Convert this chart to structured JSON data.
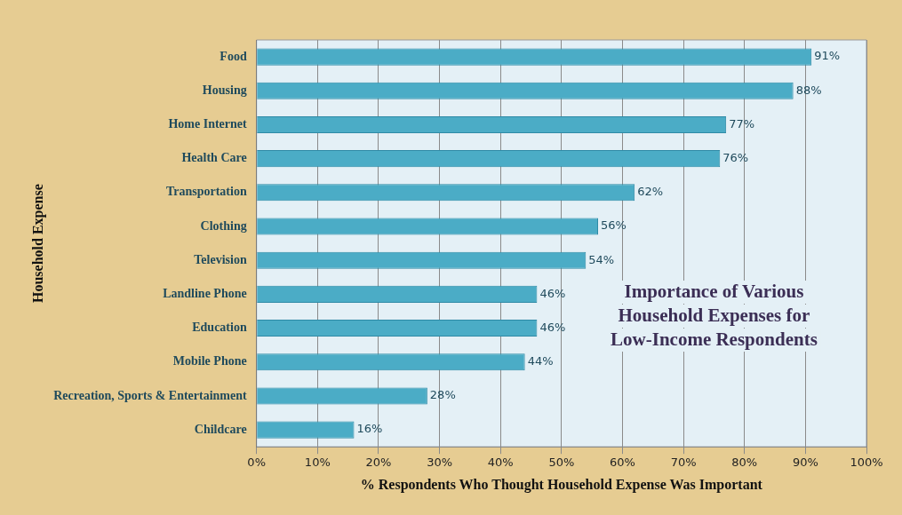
{
  "chart_data": {
    "type": "bar",
    "orientation": "horizontal",
    "title": "Importance of Various Household Expenses for Low-Income Respondents",
    "xlabel": "% Respondents Who Thought Household Expense Was Important",
    "ylabel": "Household Expense",
    "categories": [
      "Food",
      "Housing",
      "Home Internet",
      "Health Care",
      "Transportation",
      "Clothing",
      "Television",
      "Landline Phone",
      "Education",
      "Mobile Phone",
      "Recreation, Sports & Entertainment",
      "Childcare"
    ],
    "values": [
      91,
      88,
      77,
      76,
      62,
      56,
      54,
      46,
      46,
      44,
      28,
      16
    ],
    "value_labels": [
      "91%",
      "88%",
      "77%",
      "76%",
      "62%",
      "56%",
      "54%",
      "46%",
      "46%",
      "44%",
      "28%",
      "16%"
    ],
    "color": "#4bacc6",
    "xlim": [
      0,
      100
    ],
    "xticks": [
      {
        "value": 0,
        "label": "0%"
      },
      {
        "value": 10,
        "label": "10%"
      },
      {
        "value": 20,
        "label": "20%"
      },
      {
        "value": 30,
        "label": "30%"
      },
      {
        "value": 40,
        "label": "40%"
      },
      {
        "value": 50,
        "label": "50%"
      },
      {
        "value": 60,
        "label": "60%"
      },
      {
        "value": 70,
        "label": "70%"
      },
      {
        "value": 80,
        "label": "80%"
      },
      {
        "value": 90,
        "label": "90%"
      },
      {
        "value": 100,
        "label": "100%"
      }
    ],
    "grid": "x"
  }
}
